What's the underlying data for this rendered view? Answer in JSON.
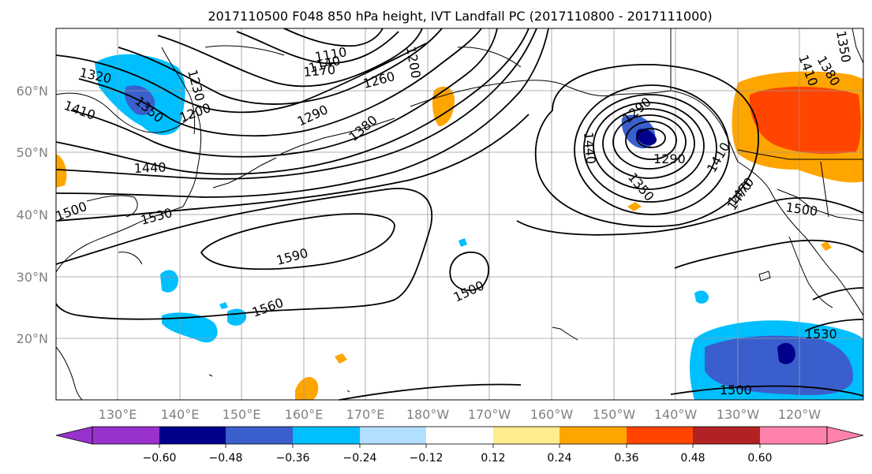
{
  "title": "2017110500 F048 850 hPa height, IVT Landfall PC (2017110800 - 2017111000)",
  "lat_labels": [
    "60°N",
    "50°N",
    "40°N",
    "30°N",
    "20°N"
  ],
  "lon_labels": [
    "130°E",
    "140°E",
    "150°E",
    "160°E",
    "170°E",
    "180°W",
    "170°W",
    "160°W",
    "150°W",
    "140°W",
    "130°W",
    "120°W"
  ],
  "contour_labels": [
    "1110",
    "1140",
    "1170",
    "1200",
    "1260",
    "1290",
    "1320",
    "1350",
    "1380",
    "1410",
    "1440",
    "1470",
    "1500",
    "1530",
    "1560",
    "1590",
    "1200",
    "1290",
    "1350",
    "1410",
    "1440",
    "1470",
    "1500",
    "1530",
    "1500",
    "1500",
    "1380",
    "1410",
    "1350",
    "1290",
    "1230"
  ],
  "colorbar": {
    "ticks": [
      "−0.60",
      "−0.48",
      "−0.36",
      "−0.24",
      "−0.12",
      "0.12",
      "0.24",
      "0.36",
      "0.48",
      "0.60"
    ],
    "colors": [
      "#9932cc",
      "#00008b",
      "#3a5fcd",
      "#00bfff",
      "#b2dfff",
      "#ffffff",
      "#ffec8b",
      "#ffa500",
      "#ff4500",
      "#b22222",
      "#ff82ab",
      "#ff82ab"
    ]
  },
  "shading_colors": {
    "neg_strong": "#00008b",
    "neg_mid": "#3a5fcd",
    "neg_light": "#00bfff",
    "pos_light": "#ffa500",
    "pos_mid": "#ff4500"
  }
}
